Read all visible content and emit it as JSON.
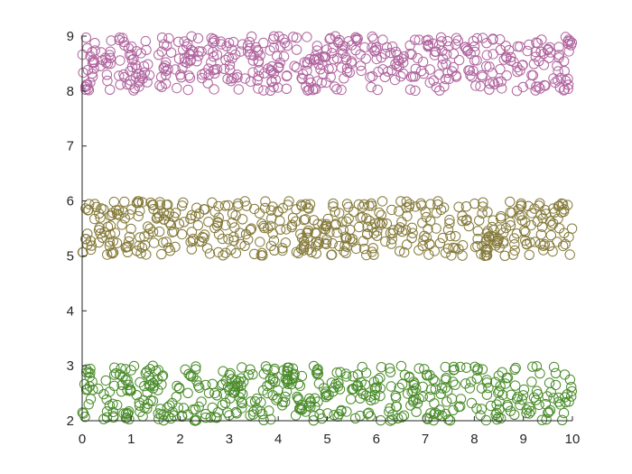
{
  "chart_data": {
    "type": "scatter",
    "title": "",
    "xlabel": "",
    "ylabel": "",
    "xlim": [
      0,
      10
    ],
    "ylim": [
      2,
      9
    ],
    "xticks": [
      0,
      1,
      2,
      3,
      4,
      5,
      6,
      7,
      8,
      9,
      10
    ],
    "yticks": [
      2,
      3,
      4,
      5,
      6,
      7,
      8,
      9
    ],
    "xtick_labels": [
      "0",
      "1",
      "2",
      "3",
      "4",
      "5",
      "6",
      "7",
      "8",
      "9",
      "10"
    ],
    "ytick_labels": [
      "2",
      "3",
      "4",
      "5",
      "6",
      "7",
      "8",
      "9"
    ],
    "grid": false,
    "legend": "none",
    "marker": "open-circle",
    "points_per_series": 500,
    "series": [
      {
        "color": "#4a8c2a",
        "distribution": "uniform",
        "x_range": [
          0,
          10
        ],
        "y_range": [
          2,
          3
        ],
        "seed": 11
      },
      {
        "color": "#857a3a",
        "distribution": "uniform",
        "x_range": [
          0,
          10
        ],
        "y_range": [
          5,
          6
        ],
        "seed": 23
      },
      {
        "color": "#b0659f",
        "distribution": "uniform",
        "x_range": [
          0,
          10
        ],
        "y_range": [
          8,
          9
        ],
        "seed": 37
      }
    ]
  }
}
